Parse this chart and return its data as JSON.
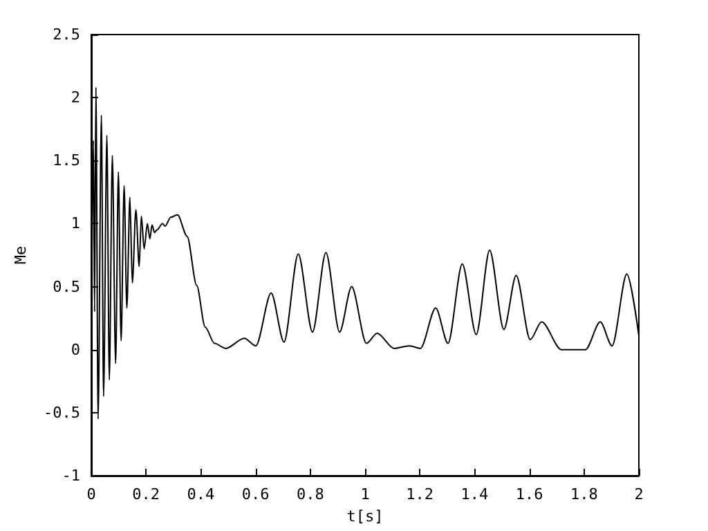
{
  "chart_data": {
    "type": "line",
    "xlabel": "t[s]",
    "ylabel": "Me",
    "x": [
      0,
      0.008,
      0.012,
      0.017,
      0.025,
      0.037,
      0.045,
      0.057,
      0.066,
      0.077,
      0.089,
      0.099,
      0.109,
      0.12,
      0.13,
      0.141,
      0.15,
      0.163,
      0.175,
      0.183,
      0.193,
      0.205,
      0.214,
      0.222,
      0.231,
      0.24,
      0.26,
      0.27,
      0.29,
      0.315,
      0.35,
      0.385,
      0.416,
      0.45,
      0.491,
      0.559,
      0.601,
      0.657,
      0.704,
      0.756,
      0.808,
      0.857,
      0.907,
      0.951,
      1.005,
      1.044,
      1.106,
      1.162,
      1.202,
      1.258,
      1.303,
      1.355,
      1.406,
      1.455,
      1.507,
      1.552,
      1.603,
      1.645,
      1.717,
      1.805,
      1.859,
      1.902,
      1.956,
      2.0
    ],
    "series": [
      {
        "color": "#000000",
        "values": [
          0.14,
          1.66,
          0.3,
          2.08,
          -0.55,
          1.86,
          -0.37,
          1.7,
          -0.24,
          1.54,
          -0.11,
          1.41,
          0.07,
          1.3,
          0.33,
          1.21,
          0.53,
          1.11,
          0.66,
          1.06,
          0.8,
          1.0,
          0.88,
          0.99,
          0.93,
          0.95,
          1.0,
          0.98,
          1.05,
          1.07,
          0.9,
          0.51,
          0.18,
          0.05,
          0.01,
          0.09,
          0.03,
          0.45,
          0.06,
          0.76,
          0.14,
          0.77,
          0.14,
          0.5,
          0.05,
          0.13,
          0.01,
          0.03,
          0.01,
          0.33,
          0.05,
          0.68,
          0.12,
          0.79,
          0.16,
          0.59,
          0.08,
          0.22,
          0.0,
          0.0,
          0.22,
          0.03,
          0.6,
          0.11
        ]
      }
    ],
    "xlim": [
      0,
      2
    ],
    "xticks": [
      0,
      0.2,
      0.4,
      0.6,
      0.8,
      1,
      1.2,
      1.4,
      1.6,
      1.8,
      2
    ],
    "ylim": [
      -1,
      2.5
    ],
    "yticks": [
      -1,
      -0.5,
      0,
      0.5,
      1,
      1.5,
      2,
      2.5
    ],
    "grid": false,
    "marker": "none",
    "line_style": "solid"
  }
}
